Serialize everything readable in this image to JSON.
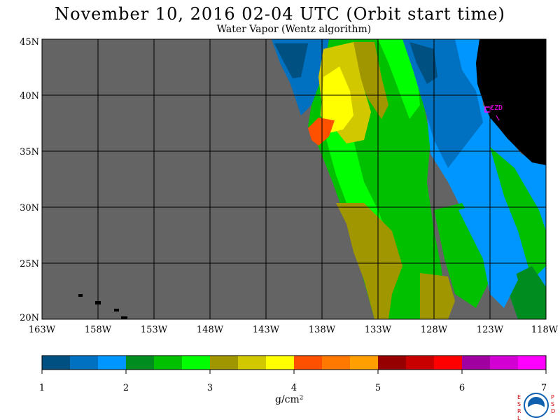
{
  "title": "November 10, 2016  02-04 UTC  (Orbit start time)",
  "subtitle": "Water Vapor (Wentz algorithm)",
  "map": {
    "lat_labels": [
      "45N",
      "40N",
      "35N",
      "30N",
      "25N",
      "20N"
    ],
    "lat_values": [
      45,
      40,
      35,
      30,
      25,
      20
    ],
    "lon_labels": [
      "163W",
      "158W",
      "153W",
      "148W",
      "143W",
      "138W",
      "133W",
      "128W",
      "123W",
      "118W"
    ],
    "lon_values": [
      -163,
      -158,
      -153,
      -148,
      -143,
      -138,
      -133,
      -128,
      -123,
      -118
    ],
    "station_label": "CZD",
    "colors": {
      "no_data": "#646464",
      "land": "#000000",
      "grid": "#000000",
      "station": "#ff00ff"
    }
  },
  "colorbar": {
    "tick_labels": [
      "1",
      "2",
      "3",
      "4",
      "5",
      "6",
      "7"
    ],
    "tick_values": [
      1,
      2,
      3,
      4,
      5,
      6,
      7
    ],
    "colors": [
      "#005082",
      "#0070c0",
      "#0096ff",
      "#008c1e",
      "#00c000",
      "#00ff00",
      "#a09600",
      "#d2c800",
      "#ffff00",
      "#ff5000",
      "#ff7800",
      "#ffa000",
      "#960000",
      "#c80000",
      "#ff0000",
      "#a000a0",
      "#d200d2",
      "#ff00ff"
    ],
    "unit_label": "g/cm²"
  },
  "logo": {
    "left_text": "ESRL",
    "right_text": "PSD",
    "center_text": "NOAA"
  }
}
